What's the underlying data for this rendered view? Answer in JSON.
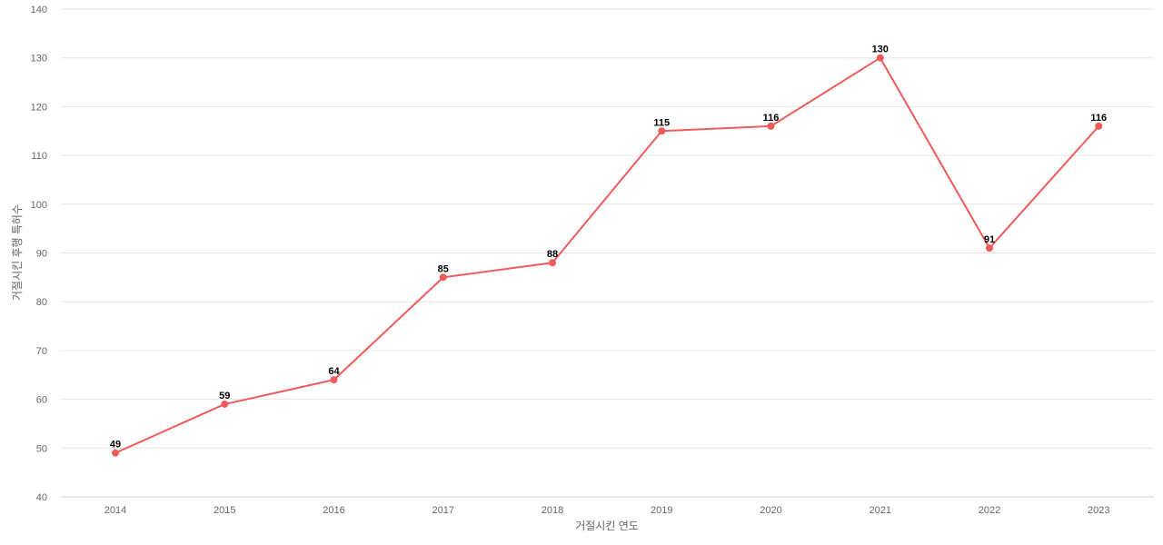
{
  "chart_data": {
    "type": "line",
    "xlabel": "거절시킨 연도",
    "ylabel": "거절시킨 후행 특허수",
    "categories": [
      "2014",
      "2015",
      "2016",
      "2017",
      "2018",
      "2019",
      "2020",
      "2021",
      "2022",
      "2023"
    ],
    "series": [
      {
        "values": [
          49,
          59,
          64,
          85,
          88,
          115,
          116,
          130,
          91,
          116
        ]
      }
    ],
    "ylim": [
      40,
      140
    ],
    "yticks": [
      40,
      50,
      60,
      70,
      80,
      90,
      100,
      110,
      120,
      130,
      140
    ],
    "grid": true,
    "legend": "none",
    "colors": {
      "line": "#f05a5a"
    }
  }
}
